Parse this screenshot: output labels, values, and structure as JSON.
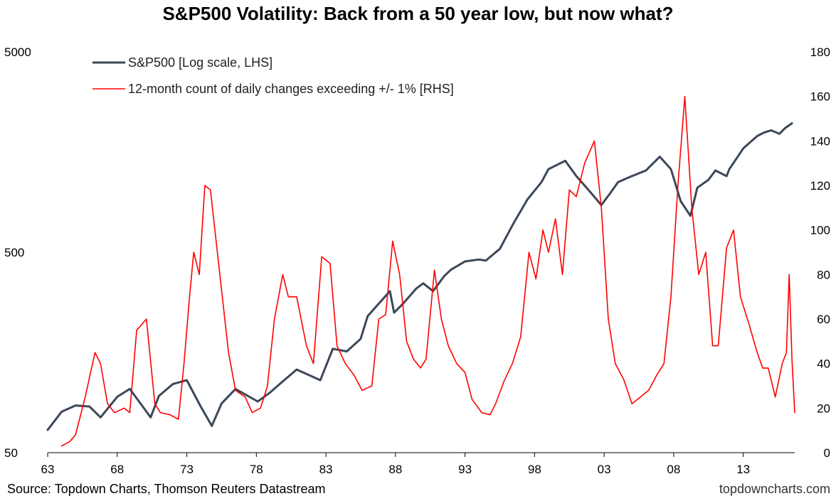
{
  "title": "S&P500 Volatility: Back from a 50 year low, but now what?",
  "source": "Source: Topdown Charts, Thomson Reuters Datastream",
  "watermark": "topdowncharts.com",
  "colors": {
    "sp500": "#3c4858",
    "count": "#ff0000",
    "axis": "#000000"
  },
  "chart_data": {
    "type": "line",
    "x_tick_labels": [
      "63",
      "68",
      "73",
      "78",
      "83",
      "88",
      "93",
      "98",
      "03",
      "08",
      "13"
    ],
    "x_tick_years": [
      1963,
      1968,
      1973,
      1978,
      1983,
      1988,
      1993,
      1998,
      2003,
      2008,
      2013
    ],
    "xlim": [
      1963,
      2016.7
    ],
    "y_left": {
      "scale": "log",
      "lim": [
        50,
        5000
      ],
      "tick_labels": [
        "50",
        "500",
        "5000"
      ],
      "ticks": [
        50,
        500,
        5000
      ]
    },
    "y_right": {
      "scale": "linear",
      "lim": [
        0,
        180
      ],
      "tick_labels": [
        "0",
        "20",
        "40",
        "60",
        "80",
        "100",
        "120",
        "140",
        "160",
        "180"
      ],
      "ticks": [
        0,
        20,
        40,
        60,
        80,
        100,
        120,
        140,
        160,
        180
      ]
    },
    "legend_position": "top-left",
    "series": [
      {
        "name": "S&P500 [Log scale, LHS]",
        "axis": "left",
        "x": [
          1963,
          1964,
          1965,
          1966,
          1966.8,
          1968,
          1968.9,
          1970.4,
          1971,
          1972,
          1973,
          1974,
          1974.8,
          1975.5,
          1976.5,
          1978.1,
          1979,
          1980,
          1980.9,
          1982.6,
          1983.5,
          1984.5,
          1985.5,
          1986,
          1987.6,
          1987.9,
          1988.5,
          1989.5,
          1990,
          1990.7,
          1991.5,
          1992,
          1993,
          1994,
          1994.5,
          1995.5,
          1996.5,
          1997.5,
          1998.5,
          1999,
          2000.2,
          2001,
          2002,
          2002.8,
          2003.5,
          2004,
          2005,
          2006,
          2007,
          2007.8,
          2008.5,
          2009.2,
          2009.7,
          2010.5,
          2011,
          2011.8,
          2012,
          2013,
          2014,
          2014.5,
          2015,
          2015.6,
          2016,
          2016.5
        ],
        "y": [
          65,
          80,
          86,
          85,
          75,
          95,
          104,
          75,
          96,
          110,
          115,
          85,
          68,
          88,
          104,
          90,
          100,
          115,
          130,
          115,
          165,
          160,
          185,
          240,
          320,
          250,
          275,
          330,
          350,
          320,
          380,
          410,
          450,
          460,
          455,
          520,
          700,
          920,
          1120,
          1300,
          1430,
          1200,
          1000,
          860,
          1000,
          1120,
          1200,
          1280,
          1500,
          1300,
          900,
          760,
          1050,
          1150,
          1280,
          1200,
          1300,
          1650,
          1900,
          1980,
          2030,
          1950,
          2080,
          2200
        ]
      },
      {
        "name": "12-month count of daily changes exceeding +/- 1% [RHS]",
        "axis": "right",
        "x": [
          1964,
          1964.6,
          1965,
          1965.7,
          1966.4,
          1966.8,
          1967.3,
          1967.8,
          1968.5,
          1968.9,
          1969.4,
          1970.1,
          1970.7,
          1971.1,
          1971.8,
          1972.4,
          1972.8,
          1973.2,
          1973.5,
          1973.9,
          1974.3,
          1974.7,
          1975.2,
          1976,
          1976.5,
          1977.2,
          1977.7,
          1978.3,
          1978.8,
          1979.3,
          1979.9,
          1980.3,
          1980.9,
          1981.6,
          1982.1,
          1982.7,
          1983.3,
          1983.8,
          1984.4,
          1985,
          1985.6,
          1986.3,
          1986.8,
          1987.3,
          1987.8,
          1988.3,
          1988.8,
          1989.3,
          1989.8,
          1990.2,
          1990.8,
          1991.3,
          1991.8,
          1992.4,
          1993,
          1993.5,
          1994.2,
          1994.8,
          1995.2,
          1995.8,
          1996.4,
          1997,
          1997.6,
          1998.1,
          1998.6,
          1999,
          1999.5,
          2000,
          2000.5,
          2001,
          2001.6,
          2002.3,
          2002.8,
          2003.3,
          2003.8,
          2004.4,
          2005,
          2005.6,
          2006.2,
          2006.8,
          2007.3,
          2007.8,
          2008.3,
          2008.8,
          2009.3,
          2009.8,
          2010.3,
          2010.8,
          2011.2,
          2011.8,
          2012.3,
          2012.8,
          2013.4,
          2014,
          2014.4,
          2014.8,
          2015.3,
          2015.8,
          2016.1,
          2016.3,
          2016.5,
          2016.7
        ],
        "y": [
          3,
          5,
          8,
          25,
          45,
          40,
          22,
          18,
          20,
          18,
          55,
          60,
          22,
          18,
          17,
          15,
          40,
          70,
          90,
          80,
          120,
          118,
          90,
          45,
          28,
          25,
          18,
          20,
          30,
          60,
          80,
          70,
          70,
          48,
          40,
          88,
          85,
          48,
          40,
          35,
          28,
          30,
          60,
          62,
          95,
          80,
          50,
          42,
          38,
          42,
          82,
          60,
          48,
          40,
          36,
          24,
          18,
          17,
          22,
          32,
          40,
          52,
          90,
          78,
          100,
          90,
          105,
          80,
          118,
          115,
          130,
          140,
          110,
          60,
          40,
          33,
          22,
          25,
          28,
          35,
          40,
          70,
          120,
          160,
          110,
          80,
          90,
          48,
          48,
          92,
          100,
          70,
          58,
          45,
          38,
          38,
          25,
          40,
          45,
          80,
          42,
          18
        ]
      }
    ]
  }
}
